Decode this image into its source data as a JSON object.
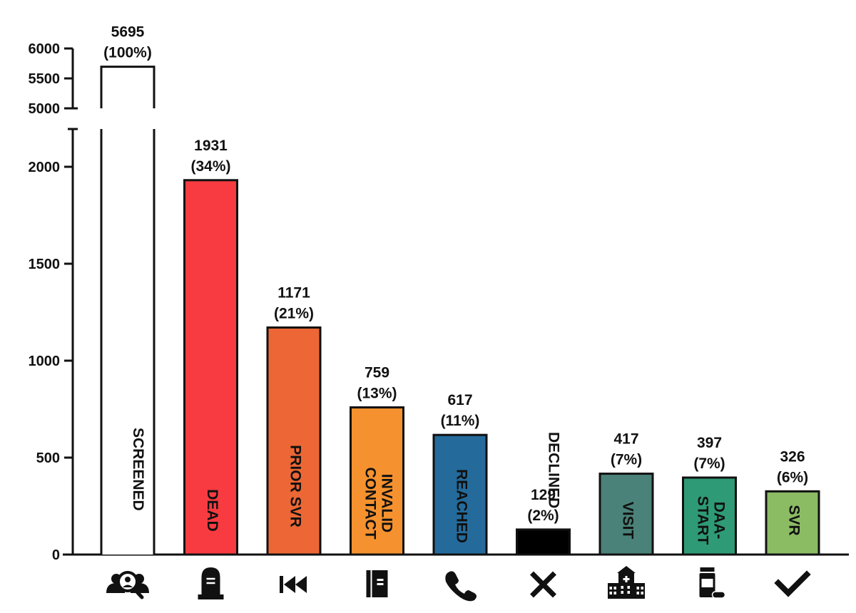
{
  "chart_data": {
    "type": "bar",
    "y_axis": {
      "broken": true,
      "lower_range": [
        0,
        2200
      ],
      "upper_range": [
        5000,
        6000
      ],
      "lower_ticks": [
        "0",
        "500",
        "1000",
        "1500",
        "2000"
      ],
      "upper_ticks": [
        "5000",
        "5500",
        "6000"
      ]
    },
    "categories": [
      "SCREENED",
      "DEAD",
      "PRIOR SVR",
      "INVALID CONTACT",
      "REACHED",
      "DECLINED",
      "VISIT",
      "DAA-START",
      "SVR"
    ],
    "bar_labels": [
      [
        "SCREENED"
      ],
      [
        "DEAD"
      ],
      [
        "PRIOR SVR"
      ],
      [
        "INVALID",
        "CONTACT"
      ],
      [
        "REACHED"
      ],
      [
        "DECLINED"
      ],
      [
        "VISIT"
      ],
      [
        "DAA-",
        "START"
      ],
      [
        "SVR"
      ]
    ],
    "values": [
      5695,
      1931,
      1171,
      759,
      617,
      129,
      417,
      397,
      326
    ],
    "value_labels": [
      "5695",
      "1931",
      "1171",
      "759",
      "617",
      "129",
      "417",
      "397",
      "326"
    ],
    "percent_labels": [
      "(100%)",
      "(34%)",
      "(21%)",
      "(13%)",
      "(11%)",
      "(2%)",
      "(7%)",
      "(7%)",
      "(6%)"
    ],
    "colors": [
      "#ffffff",
      "#f73b40",
      "#ec6735",
      "#f5922f",
      "#246b9c",
      "#000000",
      "#4a8279",
      "#2e9a76",
      "#8bbc64"
    ],
    "label_colors": [
      "#111111",
      "#111111",
      "#111111",
      "#111111",
      "#111111",
      "#ffffff",
      "#111111",
      "#111111",
      "#111111"
    ],
    "icons": [
      "screening-search-icon",
      "tombstone-icon",
      "rewind-icon",
      "contact-book-icon",
      "phone-icon",
      "x-mark-icon",
      "hospital-icon",
      "pill-bottle-icon",
      "check-mark-icon"
    ],
    "grid": false,
    "legend": "none"
  }
}
